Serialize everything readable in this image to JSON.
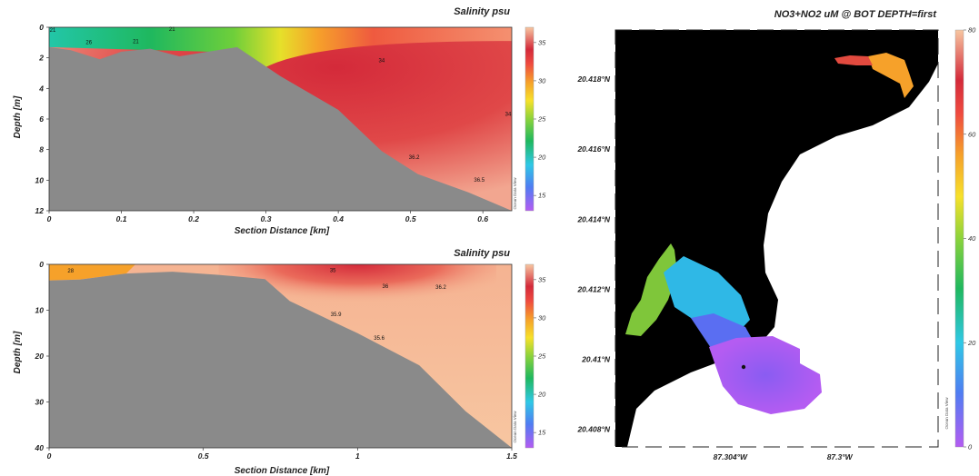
{
  "colors": {
    "background": "#ffffff",
    "terrain": "#8a8a8a",
    "land": "#000000",
    "scale": [
      "#b45cf2",
      "#4f7df2",
      "#2fc8e6",
      "#1fb85e",
      "#8bd33b",
      "#f7e12a",
      "#f6a12a",
      "#ef4a3f",
      "#d42a3a",
      "#f7c6a1"
    ]
  },
  "chart_data": [
    {
      "type": "heatmap",
      "title": "Salinity psu",
      "xlabel": "Section Distance [km]",
      "ylabel": "Depth [m]",
      "xlim": [
        0,
        0.64
      ],
      "ylim": [
        12,
        0
      ],
      "xticks": [
        "0",
        "0.1",
        "0.2",
        "0.3",
        "0.4",
        "0.5",
        "0.6"
      ],
      "yticks": [
        "0",
        "2",
        "4",
        "6",
        "8",
        "10",
        "12"
      ],
      "colorbar": {
        "min": 13,
        "max": 37,
        "ticks": [
          "15",
          "20",
          "25",
          "30",
          "35"
        ]
      },
      "watermark": "Ocean Data View",
      "bottom_profile": [
        [
          0,
          1.3
        ],
        [
          0.03,
          1.5
        ],
        [
          0.07,
          2.1
        ],
        [
          0.1,
          1.6
        ],
        [
          0.14,
          1.4
        ],
        [
          0.18,
          1.9
        ],
        [
          0.22,
          1.6
        ],
        [
          0.26,
          1.3
        ],
        [
          0.32,
          3.2
        ],
        [
          0.4,
          5.4
        ],
        [
          0.46,
          8.1
        ],
        [
          0.51,
          9.6
        ],
        [
          0.58,
          10.8
        ],
        [
          0.64,
          12
        ]
      ],
      "contour_labels": [
        {
          "text": "21",
          "x": 0.005,
          "y": 0.3
        },
        {
          "text": "21",
          "x": 0.17,
          "y": 0.25
        },
        {
          "text": "26",
          "x": 0.055,
          "y": 1.1
        },
        {
          "text": "21",
          "x": 0.12,
          "y": 1.05
        },
        {
          "text": "34",
          "x": 0.46,
          "y": 2.3
        },
        {
          "text": "34",
          "x": 0.635,
          "y": 5.8
        },
        {
          "text": "36.2",
          "x": 0.505,
          "y": 8.6
        },
        {
          "text": "36.5",
          "x": 0.595,
          "y": 10.1
        }
      ]
    },
    {
      "type": "heatmap",
      "title": "Salinity psu",
      "xlabel": "Section Distance [km]",
      "ylabel": "Depth [m]",
      "xlim": [
        0,
        1.5
      ],
      "ylim": [
        40,
        0
      ],
      "xticks": [
        "0",
        "0.5",
        "1",
        "1.5"
      ],
      "yticks": [
        "0",
        "10",
        "20",
        "30",
        "40"
      ],
      "colorbar": {
        "min": 13,
        "max": 37,
        "ticks": [
          "15",
          "20",
          "25",
          "30",
          "35"
        ]
      },
      "watermark": "Ocean Data View",
      "bottom_profile": [
        [
          0,
          3.5
        ],
        [
          0.1,
          3.3
        ],
        [
          0.25,
          2
        ],
        [
          0.4,
          1.6
        ],
        [
          0.55,
          2.3
        ],
        [
          0.7,
          3.2
        ],
        [
          0.78,
          8
        ],
        [
          1,
          15
        ],
        [
          1.2,
          22
        ],
        [
          1.35,
          32
        ],
        [
          1.5,
          40
        ]
      ],
      "contour_labels": [
        {
          "text": "28",
          "x": 0.07,
          "y": 1.8
        },
        {
          "text": "35",
          "x": 0.92,
          "y": 1.7
        },
        {
          "text": "36",
          "x": 1.09,
          "y": 5.1
        },
        {
          "text": "36.2",
          "x": 1.27,
          "y": 5.3
        },
        {
          "text": "35.9",
          "x": 0.93,
          "y": 11.3
        },
        {
          "text": "35.6",
          "x": 1.07,
          "y": 16.4
        }
      ]
    },
    {
      "type": "heatmap",
      "title": "NO3+NO2 uM @ BOT DEPTH=first",
      "xticks": [
        "87.304°W",
        "87.3°W"
      ],
      "xtick_values": [
        -87.304,
        -87.3
      ],
      "yticks": [
        "20.418°N",
        "20.416°N",
        "20.414°N",
        "20.412°N",
        "20.41°N",
        "20.408°N"
      ],
      "ytick_values": [
        20.418,
        20.416,
        20.414,
        20.412,
        20.41,
        20.408
      ],
      "colorbar": {
        "min": 0,
        "max": 80,
        "ticks": [
          "0",
          "20",
          "40",
          "60",
          "80"
        ]
      },
      "watermark": "Ocean Data View"
    }
  ]
}
